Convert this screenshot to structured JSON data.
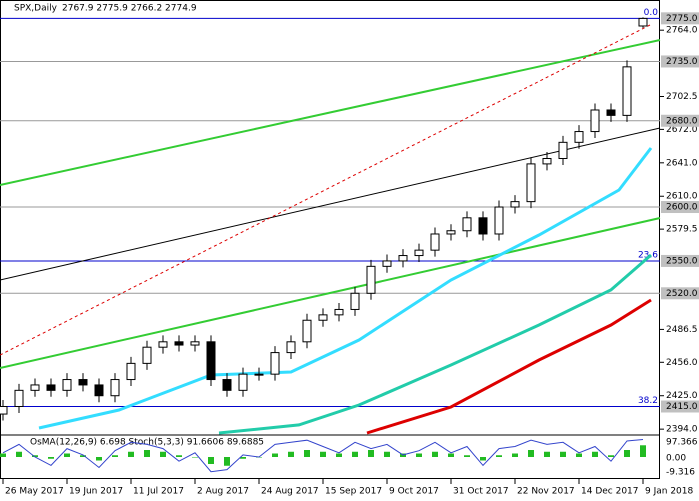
{
  "chart_data": {
    "type": "candlestick",
    "title": "SPX,Daily",
    "ohlc_label": "2767.9 2775.9 2766.2 2774.9",
    "xlim": [
      -0.75,
      164.25
    ],
    "ylim": [
      2389.5,
      2792
    ],
    "xticks": [
      {
        "value": 0,
        "label": "26 May 2017"
      },
      {
        "value": 16,
        "label": "19 Jun 2017"
      },
      {
        "value": 32,
        "label": "11 Jul 2017"
      },
      {
        "value": 48,
        "label": "2 Aug 2017"
      },
      {
        "value": 64,
        "label": "24 Aug 2017"
      },
      {
        "value": 80,
        "label": "15 Sep 2017"
      },
      {
        "value": 96,
        "label": "9 Oct 2017"
      },
      {
        "value": 112,
        "label": "31 Oct 2017"
      },
      {
        "value": 128,
        "label": "22 Nov 2017"
      },
      {
        "value": 144,
        "label": "14 Dec 2017"
      },
      {
        "value": 160,
        "label": "9 Jan 2018"
      }
    ],
    "yticks": [
      {
        "value": 2764,
        "label": "2764.0"
      },
      {
        "value": 2702.5,
        "label": "2702.5"
      },
      {
        "value": 2672,
        "label": "2672.0"
      },
      {
        "value": 2641,
        "label": "2641.0"
      },
      {
        "value": 2610,
        "label": "2610.0"
      },
      {
        "value": 2579.5,
        "label": "2579.5"
      },
      {
        "value": 2486.5,
        "label": "2486.5"
      },
      {
        "value": 2456,
        "label": "2456.0"
      },
      {
        "value": 2425,
        "label": "2425.0"
      },
      {
        "value": 2394,
        "label": "2394.0"
      }
    ],
    "levels": [
      {
        "value": 2775,
        "label": "2775.0",
        "color": "#0000cc",
        "fib": "0.0"
      },
      {
        "value": 2735,
        "label": "2735.0",
        "color": "#999999"
      },
      {
        "value": 2680,
        "label": "2680.0",
        "color": "#999999"
      },
      {
        "value": 2600,
        "label": "2600.0",
        "color": "#999999"
      },
      {
        "value": 2550,
        "label": "2550.0",
        "color": "#0000cc",
        "fib": "23.6"
      },
      {
        "value": 2520,
        "label": "2520.0",
        "color": "#999999"
      },
      {
        "value": 2415,
        "label": "2415.0",
        "color": "#0000cc",
        "fib": "38.2"
      }
    ],
    "candles": {
      "x": [
        0,
        4,
        8,
        12,
        16,
        20,
        24,
        28,
        32,
        36,
        40,
        44,
        48,
        52,
        56,
        60,
        64,
        68,
        72,
        76,
        80,
        84,
        88,
        92,
        96,
        100,
        104,
        108,
        112,
        116,
        120,
        124,
        128,
        132,
        136,
        140,
        144,
        148,
        152,
        156,
        160
      ],
      "open": [
        2408,
        2415,
        2430,
        2435,
        2430,
        2440,
        2435,
        2425,
        2440,
        2455,
        2470,
        2475,
        2472,
        2475,
        2440,
        2430,
        2445,
        2445,
        2465,
        2475,
        2495,
        2500,
        2505,
        2520,
        2545,
        2550,
        2555,
        2560,
        2575,
        2578,
        2590,
        2575,
        2600,
        2605,
        2640,
        2645,
        2660,
        2670,
        2690,
        2685,
        2767.9
      ],
      "high": [
        2421,
        2436,
        2441,
        2441,
        2446,
        2446,
        2441,
        2446,
        2461,
        2476,
        2481,
        2481,
        2481,
        2481,
        2446,
        2451,
        2451,
        2471,
        2481,
        2501,
        2506,
        2511,
        2526,
        2551,
        2556,
        2561,
        2566,
        2581,
        2584,
        2596,
        2596,
        2606,
        2611,
        2646,
        2651,
        2666,
        2676,
        2696,
        2696,
        2736,
        2775.9
      ],
      "low": [
        2402,
        2409,
        2424,
        2424,
        2424,
        2429,
        2419,
        2419,
        2434,
        2449,
        2464,
        2466,
        2466,
        2434,
        2424,
        2424,
        2439,
        2439,
        2459,
        2469,
        2489,
        2494,
        2499,
        2514,
        2539,
        2544,
        2549,
        2554,
        2569,
        2572,
        2569,
        2569,
        2594,
        2599,
        2634,
        2639,
        2654,
        2664,
        2679,
        2679,
        2766.2
      ],
      "close": [
        2415,
        2430,
        2435,
        2430,
        2440,
        2435,
        2425,
        2440,
        2455,
        2470,
        2475,
        2472,
        2475,
        2440,
        2430,
        2445,
        2445,
        2465,
        2475,
        2495,
        2500,
        2505,
        2520,
        2545,
        2550,
        2555,
        2560,
        2575,
        2578,
        2590,
        2575,
        2600,
        2605,
        2640,
        2645,
        2660,
        2670,
        2690,
        2685,
        2730,
        2774.9
      ]
    },
    "series": [
      {
        "color": "#33ddff",
        "width": 3,
        "x": [
          9,
          29,
          52,
          72,
          89,
          112,
          134,
          154,
          162
        ],
        "values": [
          2395.1,
          2411.8,
          2444.2,
          2447,
          2476.7,
          2532.3,
          2574.1,
          2615.8,
          2654.7
        ]
      },
      {
        "color": "#22ccaa",
        "width": 3,
        "x": [
          54,
          74,
          89,
          112,
          134,
          152,
          162
        ],
        "values": [
          2390.4,
          2397.9,
          2416.4,
          2453.5,
          2490.6,
          2523.1,
          2555.5
        ]
      },
      {
        "color": "#dd0000",
        "width": 3,
        "x": [
          91,
          112,
          134,
          152,
          162
        ],
        "values": [
          2390.4,
          2414.5,
          2458.1,
          2490.6,
          2513.8
        ]
      }
    ],
    "trendlines": [
      {
        "color": "#33cc33",
        "width": 2,
        "dash": false,
        "x": [
          -0.75,
          164.25
        ],
        "values": [
          2620.4,
          2754.9
        ]
      },
      {
        "color": "#33cc33",
        "width": 2,
        "dash": false,
        "x": [
          -0.75,
          164.25
        ],
        "values": [
          2450.7,
          2589.8
        ]
      },
      {
        "color": "#000000",
        "width": 1,
        "dash": false,
        "x": [
          -0.75,
          164.25
        ],
        "values": [
          2532.3,
          2673.3
        ]
      },
      {
        "color": "#dd0000",
        "width": 1,
        "dash": true,
        "x": [
          -0.75,
          161.75
        ],
        "values": [
          2462.8,
          2768.8
        ]
      }
    ],
    "indicator": {
      "title": "OsMA(12,26,9) 6.698  Stoch(5,3,3) 91.6606 89.6885",
      "axis_labels": [
        "97.366",
        "0.00",
        "-9.316"
      ],
      "osma_ylim": [
        -12,
        12
      ],
      "osma": {
        "color": "#22bb22",
        "values": [
          2,
          3,
          1,
          -1,
          2,
          1,
          -2,
          1,
          3,
          4,
          3,
          1,
          0,
          -4,
          -5,
          -1,
          0,
          2,
          3,
          4,
          3,
          2,
          3,
          4,
          3,
          2,
          2,
          3,
          2,
          1,
          -2,
          1,
          2,
          4,
          3,
          3,
          2,
          3,
          1,
          4,
          6.698
        ]
      },
      "stoch_ylim": [
        0,
        100
      ],
      "stoch": {
        "color": "#3344cc",
        "values": [
          60,
          80,
          50,
          30,
          70,
          55,
          25,
          65,
          85,
          80,
          70,
          40,
          60,
          15,
          20,
          55,
          50,
          80,
          85,
          90,
          75,
          60,
          85,
          70,
          80,
          55,
          65,
          85,
          60,
          75,
          30,
          70,
          75,
          90,
          80,
          85,
          60,
          75,
          40,
          88,
          91.6606
        ]
      }
    }
  }
}
